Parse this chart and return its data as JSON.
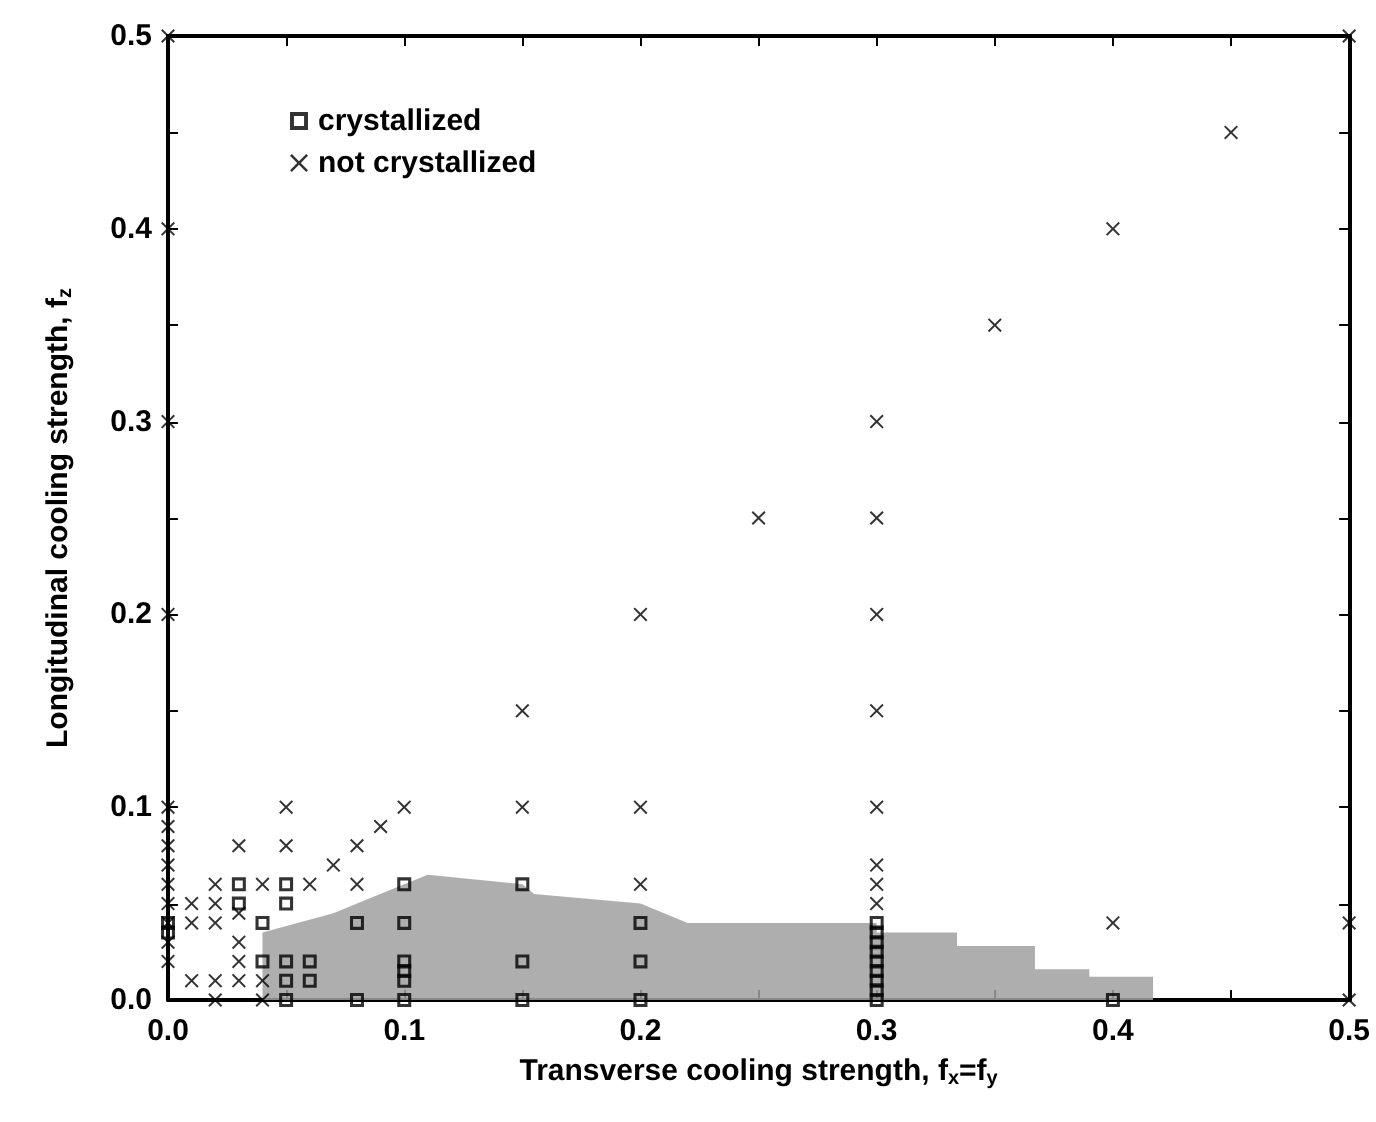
{
  "chart_data": {
    "type": "scatter",
    "xlabel": "Transverse cooling strength, f$_{x}$=f$_{y}$",
    "ylabel": "Longitudinal cooling strength, f$_{z}$",
    "xlim": [
      0,
      0.5
    ],
    "ylim": [
      0,
      0.5
    ],
    "xticks": [
      {
        "value": 0,
        "label": "0.0"
      },
      {
        "value": 0.05,
        "label": null
      },
      0.1,
      {
        "value": 0.15,
        "label": null
      },
      0.2,
      {
        "value": 0.25,
        "label": null
      },
      0.3,
      {
        "value": 0.35,
        "label": null
      },
      0.4,
      {
        "value": 0.45,
        "label": null
      },
      0.5
    ],
    "yticks": [
      {
        "value": 0,
        "label": "0.0"
      },
      {
        "value": 0.05,
        "label": null
      },
      0.1,
      {
        "value": 0.15,
        "label": null
      },
      0.2,
      {
        "value": 0.25,
        "label": null
      },
      0.3,
      {
        "value": 0.35,
        "label": null
      },
      0.4,
      {
        "value": 0.45,
        "label": null
      },
      0.5
    ],
    "grid": false,
    "legend": "top left",
    "series": [
      {
        "type": "area",
        "color": "#a0a0a0",
        "marker": "none",
        "x": [
          0.04,
          0.07,
          0.08,
          0.1,
          0.11,
          0.15,
          0.155,
          0.2,
          0.22,
          0.3,
          0.3,
          0.334,
          0.334,
          0.367,
          0.367,
          0.39,
          0.39,
          0.417,
          0.417
        ],
        "values": [
          0.035,
          0.045,
          0.05,
          0.06,
          0.065,
          0.06,
          0.055,
          0.05,
          0.04,
          0.04,
          0.035,
          0.035,
          0.028,
          0.028,
          0.016,
          0.016,
          0.012,
          0.012,
          0
        ]
      },
      {
        "name": "crystallized",
        "marker": "square",
        "color": "#000000",
        "x": [
          0,
          0,
          0.03,
          0.03,
          0.04,
          0.04,
          0.05,
          0.05,
          0.05,
          0.05,
          0.05,
          0.06,
          0.06,
          0.08,
          0.08,
          0.1,
          0.1,
          0.1,
          0.1,
          0.1,
          0.1,
          0.15,
          0.15,
          0.15,
          0.2,
          0.2,
          0.2,
          0.3,
          0.3,
          0.3,
          0.3,
          0.3,
          0.3,
          0.3,
          0.3,
          0.3,
          0.4
        ],
        "values": [
          0.04,
          0.035,
          0.06,
          0.05,
          0.04,
          0.02,
          0.06,
          0.05,
          0.02,
          0.01,
          0,
          0.02,
          0.01,
          0.04,
          0,
          0.06,
          0.04,
          0.02,
          0.015,
          0.01,
          0,
          0.06,
          0.02,
          0,
          0.04,
          0.02,
          0,
          0.04,
          0.035,
          0.03,
          0.025,
          0.02,
          0.015,
          0.01,
          0.005,
          0,
          0
        ]
      },
      {
        "name": "not crystallized",
        "marker": "cross",
        "color": "#000000",
        "x": [
          0,
          0,
          0,
          0,
          0,
          0,
          0,
          0,
          0,
          0,
          0,
          0,
          0,
          0.01,
          0.01,
          0.01,
          0.02,
          0.02,
          0.02,
          0.02,
          0.02,
          0.03,
          0.03,
          0.03,
          0.03,
          0.03,
          0.04,
          0.04,
          0.04,
          0.05,
          0.05,
          0.06,
          0.07,
          0.08,
          0.08,
          0.09,
          0.1,
          0.15,
          0.15,
          0.2,
          0.2,
          0.2,
          0.25,
          0.3,
          0.3,
          0.3,
          0.3,
          0.3,
          0.3,
          0.3,
          0.3,
          0.35,
          0.4,
          0.4,
          0.45,
          0.5,
          0.5,
          0.5
        ],
        "values": [
          0.02,
          0.03,
          0.04,
          0.05,
          0.06,
          0.07,
          0.08,
          0.09,
          0.1,
          0.2,
          0.3,
          0.4,
          0.5,
          0.05,
          0.04,
          0.01,
          0.06,
          0.05,
          0.04,
          0.01,
          0,
          0.08,
          0.045,
          0.03,
          0.02,
          0.01,
          0.06,
          0.01,
          0,
          0.1,
          0.08,
          0.06,
          0.07,
          0.08,
          0.06,
          0.09,
          0.1,
          0.15,
          0.1,
          0.2,
          0.1,
          0.06,
          0.25,
          0.3,
          0.25,
          0.2,
          0.15,
          0.1,
          0.07,
          0.06,
          0.05,
          0.35,
          0.4,
          0.04,
          0.45,
          0.5,
          0.04,
          0
        ]
      }
    ]
  }
}
